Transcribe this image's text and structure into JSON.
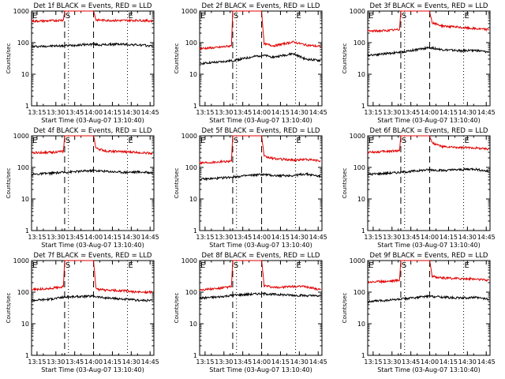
{
  "figure": {
    "panel_titles": [
      "Det 1f BLACK = Events, RED = LLD",
      "Det 2f BLACK = Events, RED = LLD",
      "Det 3f BLACK = Events, RED = LLD",
      "Det 4f BLACK = Events, RED = LLD",
      "Det 5f BLACK = Events, RED = LLD",
      "Det 6f BLACK = Events, RED = LLD",
      "Det 7f BLACK = Events, RED = LLD",
      "Det 8f BLACK = Events, RED = LLD",
      "Det 9f BLACK = Events, RED = LLD"
    ],
    "xlabel": "Start Time (03-Aug-07 13:10:40)",
    "ylabel": "Counts/sec",
    "x_tick_labels": [
      "13:15",
      "13:30",
      "13:45",
      "14:00",
      "14:15",
      "14:30",
      "14:45"
    ],
    "y_tick_labels": [
      "1",
      "10",
      "100",
      "1000"
    ],
    "markers": {
      "S": "S",
      "E_left": "E",
      "E_right": "E"
    },
    "colors": {
      "events": "#000000",
      "lld": "#e00000",
      "axes": "#000000",
      "background": "#ffffff"
    }
  },
  "chart_data": [
    {
      "type": "line",
      "title": "Det 1f BLACK = Events, RED = LLD",
      "xlabel": "Start Time (03-Aug-07 13:10:40)",
      "ylabel": "Counts/sec",
      "x_range": [
        "13:10:40",
        "14:48:00"
      ],
      "ylim": [
        1,
        1000
      ],
      "y_scale": "log",
      "x_ticks": [
        "13:15",
        "13:30",
        "13:45",
        "14:00",
        "14:15",
        "14:30",
        "14:45"
      ],
      "vlines_dotted": [
        "13:10:40",
        "13:40",
        "14:27"
      ],
      "vlines_dashed": [
        "13:37",
        "14:00"
      ],
      "series": [
        {
          "name": "BLACK = Events",
          "color": "#000000",
          "x": [
            "13:10:40",
            "13:25",
            "13:37",
            "14:00",
            "14:05",
            "14:20",
            "14:35",
            "14:47"
          ],
          "y": [
            75,
            78,
            80,
            90,
            85,
            90,
            85,
            78
          ]
        },
        {
          "name": "RED = LLD",
          "color": "#e00000",
          "x": [
            "13:10:40",
            "13:25",
            "13:36",
            "13:37",
            "14:00",
            "14:02",
            "14:20",
            "14:35",
            "14:47"
          ],
          "y": [
            480,
            490,
            520,
            1000,
            1000,
            520,
            500,
            510,
            490
          ]
        }
      ]
    },
    {
      "type": "line",
      "title": "Det 2f BLACK = Events, RED = LLD",
      "xlabel": "Start Time (03-Aug-07 13:10:40)",
      "ylabel": "Counts/sec",
      "x_range": [
        "13:10:40",
        "14:48:00"
      ],
      "ylim": [
        1,
        1000
      ],
      "y_scale": "log",
      "x_ticks": [
        "13:15",
        "13:30",
        "13:45",
        "14:00",
        "14:15",
        "14:30",
        "14:45"
      ],
      "vlines_dotted": [
        "13:10:40",
        "13:40",
        "14:27"
      ],
      "vlines_dashed": [
        "13:37",
        "14:00"
      ],
      "series": [
        {
          "name": "BLACK = Events",
          "color": "#000000",
          "x": [
            "13:10:40",
            "13:25",
            "13:37",
            "14:00",
            "14:10",
            "14:25",
            "14:35",
            "14:47"
          ],
          "y": [
            22,
            24,
            27,
            40,
            35,
            45,
            30,
            27
          ]
        },
        {
          "name": "RED = LLD",
          "color": "#e00000",
          "x": [
            "13:10:40",
            "13:25",
            "13:36",
            "13:37",
            "14:00",
            "14:02",
            "14:10",
            "14:25",
            "14:35",
            "14:47"
          ],
          "y": [
            65,
            70,
            80,
            1000,
            1000,
            90,
            80,
            105,
            85,
            75
          ]
        }
      ]
    },
    {
      "type": "line",
      "title": "Det 3f BLACK = Events, RED = LLD",
      "xlabel": "Start Time (03-Aug-07 13:10:40)",
      "ylabel": "Counts/sec",
      "x_range": [
        "13:10:40",
        "14:48:00"
      ],
      "ylim": [
        1,
        1000
      ],
      "y_scale": "log",
      "x_ticks": [
        "13:15",
        "13:30",
        "13:45",
        "14:00",
        "14:15",
        "14:30",
        "14:45"
      ],
      "vlines_dotted": [
        "13:10:40",
        "13:40",
        "14:27"
      ],
      "vlines_dashed": [
        "13:37",
        "14:00"
      ],
      "series": [
        {
          "name": "BLACK = Events",
          "color": "#000000",
          "x": [
            "13:10:40",
            "13:25",
            "13:37",
            "14:00",
            "14:10",
            "14:25",
            "14:35",
            "14:47"
          ],
          "y": [
            40,
            45,
            50,
            70,
            60,
            55,
            58,
            50
          ]
        },
        {
          "name": "RED = LLD",
          "color": "#e00000",
          "x": [
            "13:10:40",
            "13:25",
            "13:36",
            "13:37",
            "14:00",
            "14:02",
            "14:10",
            "14:25",
            "14:35",
            "14:47"
          ],
          "y": [
            230,
            240,
            260,
            1000,
            1000,
            420,
            340,
            300,
            280,
            260
          ]
        }
      ]
    },
    {
      "type": "line",
      "title": "Det 4f BLACK = Events, RED = LLD",
      "xlabel": "Start Time (03-Aug-07 13:10:40)",
      "ylabel": "Counts/sec",
      "x_range": [
        "13:10:40",
        "14:48:00"
      ],
      "ylim": [
        1,
        1000
      ],
      "y_scale": "log",
      "x_ticks": [
        "13:15",
        "13:30",
        "13:45",
        "14:00",
        "14:15",
        "14:30",
        "14:45"
      ],
      "vlines_dotted": [
        "13:10:40",
        "13:40",
        "14:27"
      ],
      "vlines_dashed": [
        "13:37",
        "14:00"
      ],
      "series": [
        {
          "name": "BLACK = Events",
          "color": "#000000",
          "x": [
            "13:10:40",
            "13:25",
            "13:37",
            "14:00",
            "14:10",
            "14:25",
            "14:35",
            "14:47"
          ],
          "y": [
            60,
            65,
            70,
            80,
            75,
            70,
            72,
            68
          ]
        },
        {
          "name": "RED = LLD",
          "color": "#e00000",
          "x": [
            "13:10:40",
            "13:25",
            "13:36",
            "13:37",
            "14:00",
            "14:02",
            "14:10",
            "14:25",
            "14:35",
            "14:47"
          ],
          "y": [
            290,
            300,
            320,
            1000,
            1000,
            400,
            330,
            310,
            300,
            280
          ]
        }
      ]
    },
    {
      "type": "line",
      "title": "Det 5f BLACK = Events, RED = LLD",
      "xlabel": "Start Time (03-Aug-07 13:10:40)",
      "ylabel": "Counts/sec",
      "x_range": [
        "13:10:40",
        "14:48:00"
      ],
      "ylim": [
        1,
        1000
      ],
      "y_scale": "log",
      "x_ticks": [
        "13:15",
        "13:30",
        "13:45",
        "14:00",
        "14:15",
        "14:30",
        "14:45"
      ],
      "vlines_dotted": [
        "13:10:40",
        "13:40",
        "14:27"
      ],
      "vlines_dashed": [
        "13:37",
        "14:00"
      ],
      "series": [
        {
          "name": "BLACK = Events",
          "color": "#000000",
          "x": [
            "13:10:40",
            "13:25",
            "13:37",
            "14:00",
            "14:10",
            "14:25",
            "14:35",
            "14:47"
          ],
          "y": [
            42,
            45,
            50,
            60,
            55,
            55,
            62,
            52
          ]
        },
        {
          "name": "RED = LLD",
          "color": "#e00000",
          "x": [
            "13:10:40",
            "13:25",
            "13:36",
            "13:37",
            "14:00",
            "14:02",
            "14:10",
            "14:25",
            "14:35",
            "14:47"
          ],
          "y": [
            140,
            150,
            160,
            1000,
            1000,
            220,
            190,
            170,
            180,
            160
          ]
        }
      ]
    },
    {
      "type": "line",
      "title": "Det 6f BLACK = Events, RED = LLD",
      "xlabel": "Start Time (03-Aug-07 13:10:40)",
      "ylabel": "Counts/sec",
      "x_range": [
        "13:10:40",
        "14:48:00"
      ],
      "ylim": [
        1,
        1000
      ],
      "y_scale": "log",
      "x_ticks": [
        "13:15",
        "13:30",
        "13:45",
        "14:00",
        "14:15",
        "14:30",
        "14:45"
      ],
      "vlines_dotted": [
        "13:10:40",
        "13:40",
        "14:27"
      ],
      "vlines_dashed": [
        "13:37",
        "14:00"
      ],
      "series": [
        {
          "name": "BLACK = Events",
          "color": "#000000",
          "x": [
            "13:10:40",
            "13:25",
            "13:37",
            "14:00",
            "14:10",
            "14:25",
            "14:35",
            "14:47"
          ],
          "y": [
            60,
            65,
            70,
            85,
            80,
            85,
            90,
            75
          ]
        },
        {
          "name": "RED = LLD",
          "color": "#e00000",
          "x": [
            "13:10:40",
            "13:25",
            "13:36",
            "13:37",
            "14:00",
            "14:02",
            "14:10",
            "14:25",
            "14:35",
            "14:47"
          ],
          "y": [
            300,
            320,
            340,
            1000,
            1000,
            600,
            450,
            420,
            420,
            380
          ]
        }
      ]
    },
    {
      "type": "line",
      "title": "Det 7f BLACK = Events, RED = LLD",
      "xlabel": "Start Time (03-Aug-07 13:10:40)",
      "ylabel": "Counts/sec",
      "x_range": [
        "13:10:40",
        "14:48:00"
      ],
      "ylim": [
        1,
        1000
      ],
      "y_scale": "log",
      "x_ticks": [
        "13:15",
        "13:30",
        "13:45",
        "14:00",
        "14:15",
        "14:30",
        "14:45"
      ],
      "vlines_dotted": [
        "13:10:40",
        "13:40",
        "14:27"
      ],
      "vlines_dashed": [
        "13:37",
        "14:00"
      ],
      "series": [
        {
          "name": "BLACK = Events",
          "color": "#000000",
          "x": [
            "13:10:40",
            "13:25",
            "13:37",
            "14:00",
            "14:10",
            "14:25",
            "14:35",
            "14:47"
          ],
          "y": [
            55,
            60,
            70,
            75,
            65,
            60,
            55,
            55
          ]
        },
        {
          "name": "RED = LLD",
          "color": "#e00000",
          "x": [
            "13:10:40",
            "13:25",
            "13:36",
            "13:37",
            "14:00",
            "14:02",
            "14:10",
            "14:25",
            "14:35",
            "14:47"
          ],
          "y": [
            120,
            130,
            150,
            1000,
            1000,
            125,
            115,
            110,
            100,
            100
          ]
        }
      ]
    },
    {
      "type": "line",
      "title": "Det 8f BLACK = Events, RED = LLD",
      "xlabel": "Start Time (03-Aug-07 13:10:40)",
      "ylabel": "Counts/sec",
      "x_range": [
        "13:10:40",
        "14:48:00"
      ],
      "ylim": [
        1,
        1000
      ],
      "y_scale": "log",
      "x_ticks": [
        "13:15",
        "13:30",
        "13:45",
        "14:00",
        "14:15",
        "14:30",
        "14:45"
      ],
      "vlines_dotted": [
        "13:10:40",
        "13:40",
        "14:27"
      ],
      "vlines_dashed": [
        "13:37",
        "14:00"
      ],
      "series": [
        {
          "name": "BLACK = Events",
          "color": "#000000",
          "x": [
            "13:10:40",
            "13:25",
            "13:37",
            "14:00",
            "14:10",
            "14:25",
            "14:35",
            "14:47"
          ],
          "y": [
            65,
            70,
            80,
            90,
            85,
            80,
            78,
            75
          ]
        },
        {
          "name": "RED = LLD",
          "color": "#e00000",
          "x": [
            "13:10:40",
            "13:25",
            "13:36",
            "13:37",
            "14:00",
            "14:02",
            "14:10",
            "14:25",
            "14:35",
            "14:47"
          ],
          "y": [
            120,
            130,
            150,
            1000,
            1000,
            160,
            140,
            150,
            150,
            120
          ]
        }
      ]
    },
    {
      "type": "line",
      "title": "Det 9f BLACK = Events, RED = LLD",
      "xlabel": "Start Time (03-Aug-07 13:10:40)",
      "ylabel": "Counts/sec",
      "x_range": [
        "13:10:40",
        "14:48:00"
      ],
      "ylim": [
        1,
        1000
      ],
      "y_scale": "log",
      "x_ticks": [
        "13:15",
        "13:30",
        "13:45",
        "14:00",
        "14:15",
        "14:30",
        "14:45"
      ],
      "vlines_dotted": [
        "13:10:40",
        "13:40",
        "14:27"
      ],
      "vlines_dashed": [
        "13:37",
        "14:00"
      ],
      "series": [
        {
          "name": "BLACK = Events",
          "color": "#000000",
          "x": [
            "13:10:40",
            "13:25",
            "13:37",
            "14:00",
            "14:10",
            "14:25",
            "14:35",
            "14:47"
          ],
          "y": [
            50,
            55,
            60,
            75,
            70,
            65,
            68,
            60
          ]
        },
        {
          "name": "RED = LLD",
          "color": "#e00000",
          "x": [
            "13:10:40",
            "13:25",
            "13:36",
            "13:37",
            "14:00",
            "14:02",
            "14:10",
            "14:25",
            "14:35",
            "14:47"
          ],
          "y": [
            210,
            220,
            240,
            1000,
            1000,
            320,
            280,
            270,
            260,
            240
          ]
        }
      ]
    }
  ]
}
